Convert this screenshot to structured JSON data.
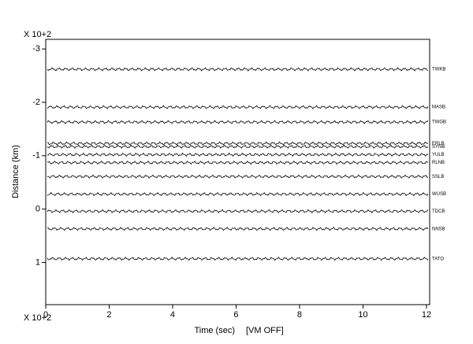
{
  "chart_data": {
    "type": "record-section",
    "y_label": "Distance (km)",
    "y_multiplier": "X 10+2",
    "x_label": "Time (sec)",
    "annotation": "[VM OFF]",
    "x_multiplier": "X 10+2",
    "xlim": [
      0,
      12.1
    ],
    "xticks": [
      0,
      2,
      4,
      6,
      8,
      10,
      12
    ],
    "ylim": [
      -3.18,
      1.79
    ],
    "y_inverted": true,
    "yticks": [
      -3,
      -2,
      -1,
      0,
      1
    ],
    "color": "#000000",
    "traces": [
      {
        "name": "TWKB",
        "distance": -2.62
      },
      {
        "name": "MASB",
        "distance": -1.91
      },
      {
        "name": "TWGB",
        "distance": -1.63
      },
      {
        "name": "ERLB",
        "distance": -1.23
      },
      {
        "name": "SYNB",
        "distance": -1.17
      },
      {
        "name": "YULB",
        "distance": -1.02
      },
      {
        "name": "RLNB",
        "distance": -0.87
      },
      {
        "name": "SSLB",
        "distance": -0.61
      },
      {
        "name": "WUSB",
        "distance": -0.28
      },
      {
        "name": "TDCB",
        "distance": 0.04
      },
      {
        "name": "NNSB",
        "distance": 0.37
      },
      {
        "name": "TATO",
        "distance": 0.93
      }
    ]
  }
}
